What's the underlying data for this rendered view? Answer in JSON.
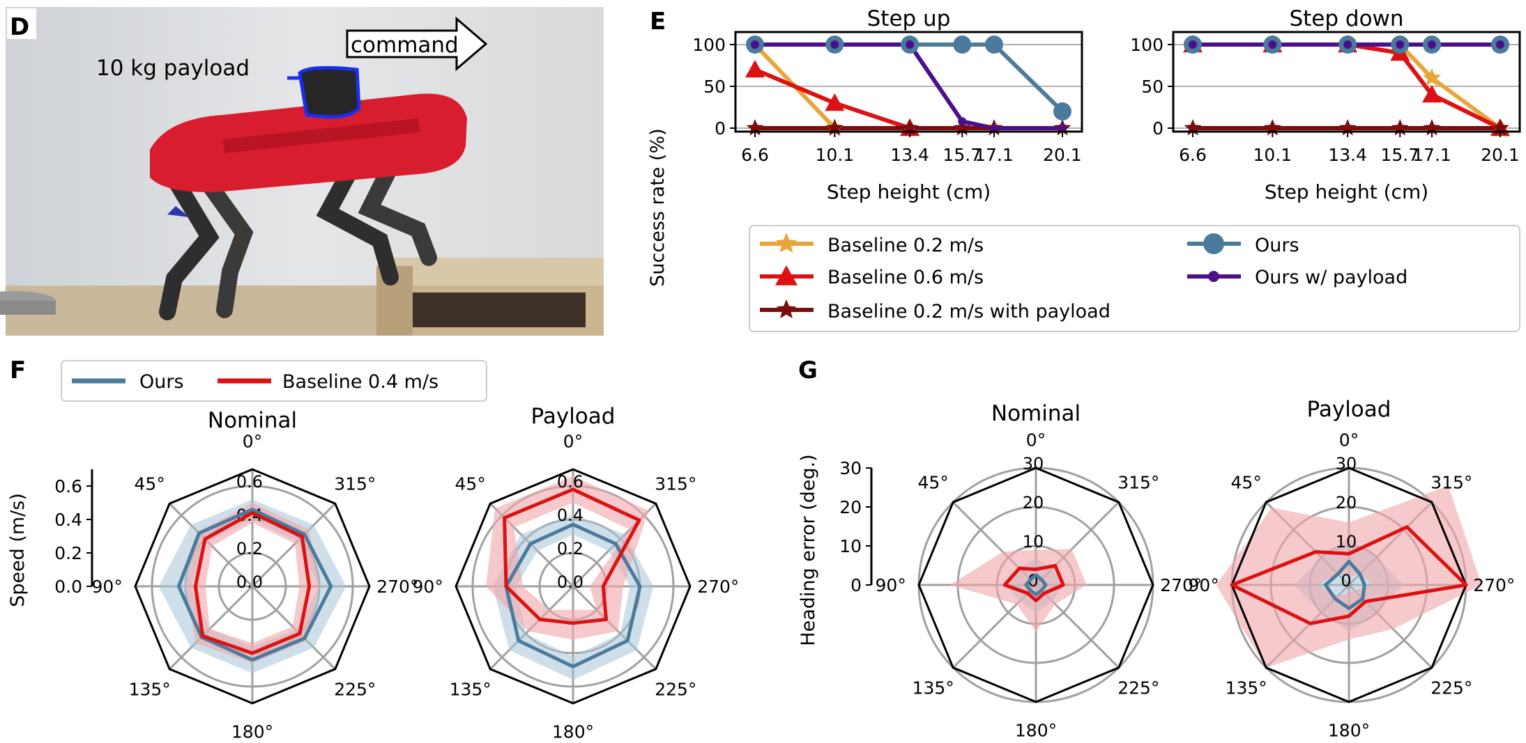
{
  "panels": {
    "D": {
      "letter": "D",
      "payload_label": "10 kg payload",
      "command_label": "command"
    },
    "E": {
      "letter": "E"
    },
    "F": {
      "letter": "F"
    },
    "G": {
      "letter": "G"
    }
  },
  "colors": {
    "baseline_02": "#e8a63a",
    "baseline_06": "#dd1111",
    "baseline_02_payload": "#7a0d0d",
    "ours": "#4a7b9d",
    "ours_payload": "#4b0f8c",
    "baseline_04": "#dd1111",
    "ours_band": "#a8c4d8",
    "baseline_band": "#f0a6aa"
  },
  "chart_data": [
    {
      "type": "line",
      "panel": "E",
      "title": "Step up",
      "xlabel": "Step height (cm)",
      "ylabel": "Success rate (%)",
      "x": [
        6.6,
        10.1,
        13.4,
        15.7,
        17.1,
        20.1
      ],
      "x_tick_labels": [
        "6.6",
        "10.1",
        "13.4",
        "15.7",
        "17.1",
        "20.1"
      ],
      "y_ticks": [
        "0",
        "50",
        "100"
      ],
      "ylim": [
        0,
        100
      ],
      "grid": "horizontal",
      "series": [
        {
          "name": "Baseline 0.2 m/s",
          "marker": "star",
          "x": [
            6.6,
            10.1
          ],
          "values": [
            100,
            0
          ]
        },
        {
          "name": "Baseline 0.6 m/s",
          "marker": "triangle",
          "x": [
            6.6,
            10.1,
            13.4
          ],
          "values": [
            70,
            30,
            0
          ]
        },
        {
          "name": "Baseline 0.2 m/s with payload",
          "marker": "star",
          "x": [
            6.6,
            10.1,
            13.4,
            15.7,
            17.1,
            20.1
          ],
          "values": [
            0,
            0,
            0,
            0,
            0,
            0
          ]
        },
        {
          "name": "Ours",
          "marker": "circle",
          "x": [
            6.6,
            10.1,
            13.4,
            15.7,
            17.1,
            20.1
          ],
          "values": [
            100,
            100,
            100,
            100,
            100,
            20
          ]
        },
        {
          "name": "Ours w/ payload",
          "marker": "dot",
          "x": [
            6.6,
            10.1,
            13.4,
            15.7,
            17.1,
            20.1
          ],
          "values": [
            100,
            100,
            100,
            8,
            0,
            0
          ]
        }
      ]
    },
    {
      "type": "line",
      "panel": "E",
      "title": "Step down",
      "xlabel": "Step height (cm)",
      "x": [
        6.6,
        10.1,
        13.4,
        15.7,
        17.1,
        20.1
      ],
      "x_tick_labels": [
        "6.6",
        "10.1",
        "13.4",
        "15.7",
        "17.1",
        "20.1"
      ],
      "y_ticks": [
        "0",
        "50",
        "100"
      ],
      "ylim": [
        0,
        100
      ],
      "grid": "horizontal",
      "series": [
        {
          "name": "Baseline 0.2 m/s",
          "marker": "star",
          "x": [
            6.6,
            10.1,
            13.4,
            15.7,
            17.1,
            20.1
          ],
          "values": [
            100,
            100,
            100,
            100,
            60,
            0
          ]
        },
        {
          "name": "Baseline 0.6 m/s",
          "marker": "triangle",
          "x": [
            6.6,
            10.1,
            13.4,
            15.7,
            17.1,
            20.1
          ],
          "values": [
            100,
            100,
            100,
            90,
            40,
            0
          ]
        },
        {
          "name": "Baseline 0.2 m/s with payload",
          "marker": "star",
          "x": [
            6.6,
            10.1,
            13.4,
            15.7,
            17.1,
            20.1
          ],
          "values": [
            0,
            0,
            0,
            0,
            0,
            0
          ]
        },
        {
          "name": "Ours",
          "marker": "circle",
          "x": [
            6.6,
            10.1,
            13.4,
            15.7,
            17.1,
            20.1
          ],
          "values": [
            100,
            100,
            100,
            100,
            100,
            100
          ]
        },
        {
          "name": "Ours w/ payload",
          "marker": "dot",
          "x": [
            6.6,
            10.1,
            13.4,
            15.7,
            17.1,
            20.1
          ],
          "values": [
            100,
            100,
            100,
            100,
            100,
            100
          ]
        }
      ],
      "legend_entries": [
        "Baseline 0.2 m/s",
        "Baseline 0.6 m/s",
        "Baseline 0.2 m/s with payload",
        "Ours",
        "Ours w/ payload"
      ]
    },
    {
      "type": "radar",
      "panel": "F",
      "title": "Nominal",
      "ylabel": "Speed (m/s)",
      "angles": [
        0,
        315,
        270,
        225,
        180,
        135,
        90,
        45
      ],
      "angle_labels": [
        "0°",
        "315°",
        "270°",
        "225°",
        "180°",
        "135°",
        "90°",
        "45°"
      ],
      "rlim": [
        0,
        0.7
      ],
      "r_ticks": [
        0,
        0.2,
        0.4,
        0.6
      ],
      "r_tick_labels": [
        "0.0",
        "0.2",
        "0.4",
        "0.6"
      ],
      "axis_ticks": [
        "0.0",
        "0.2",
        "0.4",
        "0.6"
      ],
      "series": [
        {
          "name": "Ours",
          "values": [
            0.46,
            0.44,
            0.47,
            0.44,
            0.44,
            0.43,
            0.44,
            0.45
          ],
          "band_low": [
            0.4,
            0.38,
            0.4,
            0.37,
            0.36,
            0.36,
            0.37,
            0.38
          ],
          "band_high": [
            0.52,
            0.52,
            0.56,
            0.52,
            0.52,
            0.52,
            0.56,
            0.52
          ]
        },
        {
          "name": "Baseline 0.4 m/s",
          "values": [
            0.44,
            0.42,
            0.34,
            0.4,
            0.4,
            0.42,
            0.34,
            0.4
          ],
          "band_low": [
            0.38,
            0.36,
            0.28,
            0.34,
            0.34,
            0.36,
            0.28,
            0.34
          ],
          "band_high": [
            0.5,
            0.48,
            0.4,
            0.46,
            0.46,
            0.48,
            0.4,
            0.46
          ]
        }
      ],
      "legend_entries": [
        "Ours",
        "Baseline 0.4 m/s"
      ]
    },
    {
      "type": "radar",
      "panel": "F",
      "title": "Payload",
      "angles": [
        0,
        315,
        270,
        225,
        180,
        135,
        90,
        45
      ],
      "angle_labels": [
        "0°",
        "315°",
        "270°",
        "225°",
        "180°",
        "135°",
        "90°",
        "45°"
      ],
      "rlim": [
        0,
        0.7
      ],
      "r_ticks": [
        0,
        0.2,
        0.4,
        0.6
      ],
      "r_tick_labels": [
        "0.0",
        "0.2",
        "0.4",
        "0.6"
      ],
      "series": [
        {
          "name": "Ours",
          "values": [
            0.37,
            0.36,
            0.4,
            0.46,
            0.48,
            0.46,
            0.4,
            0.36
          ],
          "band_low": [
            0.31,
            0.3,
            0.34,
            0.4,
            0.42,
            0.4,
            0.34,
            0.3
          ],
          "band_high": [
            0.43,
            0.44,
            0.48,
            0.54,
            0.56,
            0.54,
            0.48,
            0.44
          ]
        },
        {
          "name": "Baseline 0.4 m/s",
          "values": [
            0.58,
            0.56,
            0.18,
            0.28,
            0.22,
            0.28,
            0.4,
            0.58
          ],
          "band_low": [
            0.5,
            0.48,
            0.1,
            0.2,
            0.14,
            0.2,
            0.3,
            0.5
          ],
          "band_high": [
            0.66,
            0.64,
            0.3,
            0.38,
            0.32,
            0.38,
            0.52,
            0.66
          ]
        }
      ]
    },
    {
      "type": "radar",
      "panel": "G",
      "title": "Nominal",
      "ylabel": "Heading error (deg.)",
      "angles": [
        0,
        315,
        270,
        225,
        180,
        135,
        90,
        45
      ],
      "angle_labels": [
        "0°",
        "315°",
        "270°",
        "225°",
        "180°",
        "135°",
        "90°",
        "45°"
      ],
      "rlim": [
        0,
        30
      ],
      "r_ticks": [
        0,
        10,
        20,
        30
      ],
      "r_tick_labels": [
        "0",
        "10",
        "20",
        "30"
      ],
      "axis_ticks": [
        "0",
        "10",
        "20",
        "30"
      ],
      "series": [
        {
          "name": "Ours",
          "values": [
            2.5,
            2.0,
            2.5,
            2.0,
            2.5,
            2.0,
            2.5,
            2.0
          ],
          "band_low": [
            0,
            0,
            0,
            0,
            0,
            0,
            0,
            0
          ],
          "band_high": [
            7,
            6,
            7,
            6,
            7,
            6,
            8,
            6
          ]
        },
        {
          "name": "Baseline 0.4 m/s",
          "values": [
            4,
            7,
            7,
            3,
            4,
            3,
            8,
            6
          ],
          "band_low": [
            0,
            1,
            1,
            0,
            0,
            0,
            1,
            1
          ],
          "band_high": [
            9,
            13,
            13,
            7,
            12,
            7,
            22,
            12
          ]
        }
      ]
    },
    {
      "type": "radar",
      "panel": "G",
      "title": "Payload",
      "angles": [
        0,
        315,
        270,
        225,
        180,
        135,
        90,
        45
      ],
      "angle_labels": [
        "0°",
        "315°",
        "270°",
        "225°",
        "180°",
        "135°",
        "90°",
        "45°"
      ],
      "rlim": [
        0,
        30
      ],
      "r_ticks": [
        0,
        10,
        20,
        30
      ],
      "r_tick_labels": [
        "0",
        "10",
        "20",
        "30"
      ],
      "series": [
        {
          "name": "Ours",
          "values": [
            6,
            4,
            4,
            5,
            6,
            5,
            6,
            4
          ],
          "band_low": [
            1,
            1,
            1,
            1,
            1,
            1,
            1,
            1
          ],
          "band_high": [
            12,
            10,
            14,
            10,
            12,
            10,
            14,
            10
          ]
        },
        {
          "name": "Baseline 0.4 m/s",
          "values": [
            8,
            21,
            30,
            6,
            8,
            14,
            30,
            12
          ],
          "band_low": [
            2,
            4,
            6,
            2,
            2,
            4,
            8,
            4
          ],
          "band_high": [
            16,
            36,
            34,
            16,
            14,
            30,
            34,
            28
          ]
        }
      ]
    }
  ]
}
